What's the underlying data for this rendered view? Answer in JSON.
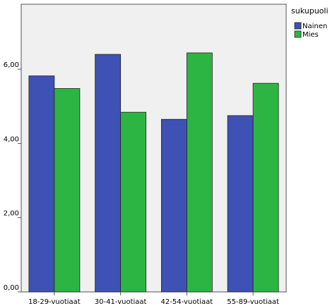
{
  "chart_data": {
    "type": "bar",
    "categories": [
      "18-29-vuotiaat",
      "30-41-vuotiaat",
      "42-54-vuotiaat",
      "55-89-vuotiaat"
    ],
    "series": [
      {
        "name": "Nainen",
        "values": [
          5.82,
          6.4,
          4.65,
          4.75
        ]
      },
      {
        "name": "Mies",
        "values": [
          5.48,
          4.84,
          6.44,
          5.62
        ]
      }
    ],
    "yticks": [
      "0,00",
      "2,00",
      "4,00",
      "6,00"
    ],
    "ylim": [
      0,
      7.75
    ],
    "legend_title": "sukupuoli",
    "legend_position": "top-right",
    "grid": false,
    "colors": {
      "Nainen": "#3e51b5",
      "Mies": "#2db543",
      "plot_background": "#f0f0f0"
    }
  }
}
